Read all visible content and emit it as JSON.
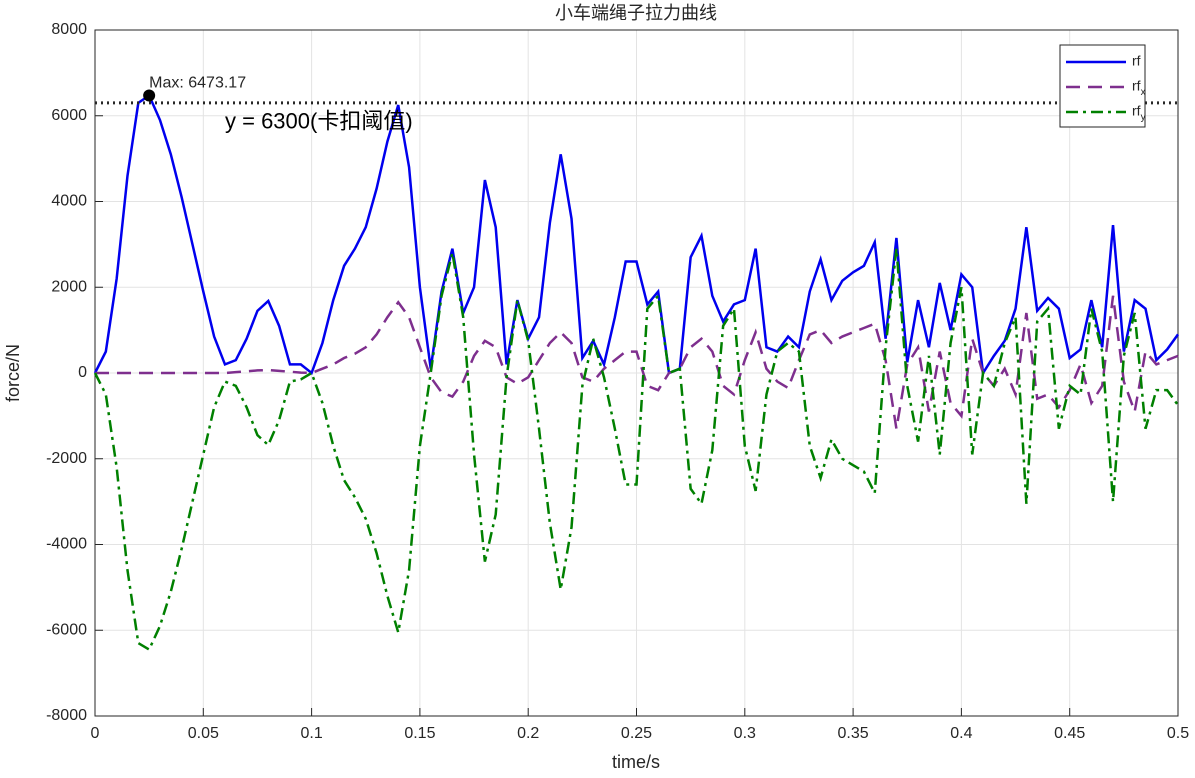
{
  "chart_data": {
    "type": "line",
    "title": "小车端绳子拉力曲线",
    "xlabel": "time/s",
    "ylabel": "force/N",
    "x": [
      0,
      0.005,
      0.01,
      0.015,
      0.02,
      0.025,
      0.03,
      0.035,
      0.04,
      0.045,
      0.05,
      0.055,
      0.06,
      0.065,
      0.07,
      0.075,
      0.08,
      0.085,
      0.09,
      0.095,
      0.1,
      0.105,
      0.11,
      0.115,
      0.12,
      0.125,
      0.13,
      0.135,
      0.14,
      0.145,
      0.15,
      0.155,
      0.16,
      0.165,
      0.17,
      0.175,
      0.18,
      0.185,
      0.19,
      0.195,
      0.2,
      0.205,
      0.21,
      0.215,
      0.22,
      0.225,
      0.23,
      0.235,
      0.24,
      0.245,
      0.25,
      0.255,
      0.26,
      0.265,
      0.27,
      0.275,
      0.28,
      0.285,
      0.29,
      0.295,
      0.3,
      0.305,
      0.31,
      0.315,
      0.32,
      0.325,
      0.33,
      0.335,
      0.34,
      0.345,
      0.35,
      0.355,
      0.36,
      0.365,
      0.37,
      0.375,
      0.38,
      0.385,
      0.39,
      0.395,
      0.4,
      0.405,
      0.41,
      0.415,
      0.42,
      0.425,
      0.43,
      0.435,
      0.44,
      0.445,
      0.45,
      0.455,
      0.46,
      0.465,
      0.47,
      0.475,
      0.48,
      0.485,
      0.49,
      0.495,
      0.5
    ],
    "series": [
      {
        "name": "rf",
        "color": "#0000ee",
        "style": "solid",
        "values": [
          0,
          500,
          2200,
          4600,
          6300,
          6473.17,
          5900,
          5100,
          4100,
          3000,
          1900,
          850,
          200,
          300,
          800,
          1450,
          1680,
          1100,
          200,
          200,
          0,
          700,
          1700,
          2500,
          2900,
          3400,
          4300,
          5400,
          6250,
          4800,
          2000,
          100,
          1900,
          2900,
          1400,
          2000,
          4500,
          3400,
          200,
          1700,
          800,
          1300,
          3500,
          5100,
          3600,
          350,
          750,
          200,
          1300,
          2600,
          2600,
          1600,
          1900,
          0,
          100,
          2700,
          3200,
          1800,
          1200,
          1600,
          1700,
          2900,
          600,
          500,
          850,
          600,
          1900,
          2650,
          1700,
          2150,
          2350,
          2500,
          3050,
          800,
          3150,
          250,
          1700,
          600,
          2100,
          1000,
          2300,
          2000,
          0,
          400,
          750,
          1500,
          3400,
          1450,
          1750,
          1500,
          350,
          550,
          1700,
          600,
          3450,
          500,
          1700,
          1500,
          300,
          550,
          900
        ]
      },
      {
        "name": "rf_x",
        "color": "#7e2f8e",
        "style": "dashed",
        "values": [
          0,
          0,
          0,
          0,
          0,
          0,
          0,
          0,
          0,
          0,
          0,
          0,
          0,
          20,
          40,
          60,
          70,
          50,
          30,
          10,
          0,
          100,
          200,
          350,
          450,
          600,
          900,
          1300,
          1650,
          1300,
          600,
          -100,
          -450,
          -550,
          -200,
          400,
          750,
          600,
          -100,
          -250,
          -100,
          300,
          700,
          950,
          700,
          -100,
          -200,
          100,
          300,
          500,
          500,
          -300,
          -400,
          0,
          100,
          600,
          800,
          500,
          -300,
          -500,
          300,
          950,
          100,
          -200,
          -350,
          300,
          900,
          1000,
          700,
          850,
          950,
          1050,
          1150,
          300,
          -1300,
          200,
          600,
          -900,
          500,
          -700,
          -1000,
          800,
          0,
          -300,
          100,
          -500,
          1400,
          -600,
          -500,
          -800,
          -400,
          200,
          -700,
          -300,
          1800,
          -200,
          -900,
          500,
          200,
          300,
          400
        ]
      },
      {
        "name": "rf_y",
        "color": "#008000",
        "style": "dashdot",
        "values": [
          0,
          -500,
          -2200,
          -4600,
          -6300,
          -6450,
          -5900,
          -5100,
          -4100,
          -3000,
          -1900,
          -800,
          -200,
          -300,
          -800,
          -1450,
          -1680,
          -1100,
          -200,
          -150,
          0,
          -700,
          -1700,
          -2500,
          -2900,
          -3400,
          -4200,
          -5200,
          -6050,
          -4600,
          -1700,
          0,
          1800,
          2800,
          1300,
          -1900,
          -4400,
          -3300,
          -100,
          1700,
          750,
          -1300,
          -3500,
          -5050,
          -3600,
          -300,
          800,
          -100,
          -1300,
          -2600,
          -2600,
          1500,
          1800,
          0,
          100,
          -2700,
          -3050,
          -1800,
          1100,
          1500,
          -1700,
          -2750,
          -500,
          500,
          700,
          500,
          -1700,
          -2450,
          -1550,
          -2000,
          -2150,
          -2300,
          -2800,
          600,
          2900,
          -300,
          -1600,
          400,
          -1900,
          700,
          2000,
          -1900,
          0,
          -300,
          700,
          1300,
          -3050,
          1200,
          1500,
          -1300,
          -300,
          -500,
          1500,
          500,
          -3000,
          400,
          1400,
          -1300,
          -400,
          -400,
          -750
        ]
      }
    ],
    "xlim": [
      0,
      0.5
    ],
    "xticks": [
      0,
      0.05,
      0.1,
      0.15,
      0.2,
      0.25,
      0.3,
      0.35,
      0.4,
      0.45,
      0.5
    ],
    "ylim": [
      -8000,
      8000
    ],
    "yticks": [
      -8000,
      -6000,
      -4000,
      -2000,
      0,
      2000,
      4000,
      6000,
      8000
    ],
    "grid": true,
    "legend": "northeast",
    "threshold": {
      "value": 6300,
      "label": "y = 6300(卡扣阈值)"
    },
    "max_point": {
      "x": 0.025,
      "y": 6473.17,
      "label": "Max: 6473.17"
    }
  }
}
